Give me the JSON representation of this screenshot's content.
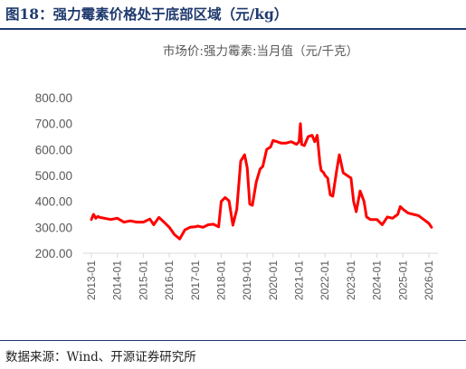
{
  "figure_title": "图18：强力霉素价格处于底部区域（元/kg）",
  "source_note": "数据来源：Wind、开源证券研究所",
  "chart_data": {
    "type": "line",
    "title": "市场价:强力霉素:当月值（元/千克）",
    "xlabel": "",
    "ylabel": "",
    "ylim": [
      200,
      800
    ],
    "y_ticks": [
      "200.00",
      "300.00",
      "400.00",
      "500.00",
      "600.00",
      "700.00",
      "800.00"
    ],
    "x_ticks": [
      "2013-01",
      "2014-01",
      "2015-01",
      "2016-01",
      "2017-01",
      "2018-01",
      "2019-01",
      "2020-01",
      "2021-01",
      "2022-01",
      "2023-01",
      "2024-01",
      "2025-01",
      "2026-01"
    ],
    "grid": false,
    "series_color": "#ff0000",
    "series": [
      {
        "x": [
          2013.0,
          2013.08,
          2013.17,
          2013.25,
          2013.33,
          2013.5,
          2013.75,
          2014.0,
          2014.25,
          2014.5,
          2014.75,
          2015.0,
          2015.25,
          2015.4,
          2015.6,
          2015.8,
          2016.0,
          2016.2,
          2016.4,
          2016.6,
          2016.8,
          2017.0,
          2017.1,
          2017.3,
          2017.5,
          2017.7,
          2017.9,
          2018.0,
          2018.15,
          2018.3,
          2018.45,
          2018.6,
          2018.75,
          2018.9,
          2019.0,
          2019.1,
          2019.2,
          2019.35,
          2019.5,
          2019.6,
          2019.75,
          2019.9,
          2020.0,
          2020.15,
          2020.3,
          2020.5,
          2020.7,
          2020.9,
          2021.0,
          2021.05,
          2021.1,
          2021.2,
          2021.35,
          2021.5,
          2021.6,
          2021.7,
          2021.8,
          2021.85,
          2021.95,
          2022.0,
          2022.1,
          2022.2,
          2022.3,
          2022.45,
          2022.55,
          2022.7,
          2022.85,
          2023.0,
          2023.1,
          2023.2,
          2023.35,
          2023.5,
          2023.6,
          2023.75,
          2024.0,
          2024.2,
          2024.4,
          2024.6,
          2024.8,
          2024.9,
          2025.0,
          2025.2,
          2025.4,
          2025.6,
          2025.8,
          2026.0,
          2026.1
        ],
        "values": [
          330,
          350,
          335,
          342,
          338,
          335,
          330,
          335,
          320,
          325,
          320,
          320,
          332,
          310,
          338,
          320,
          300,
          272,
          255,
          290,
          300,
          302,
          305,
          300,
          310,
          312,
          302,
          400,
          415,
          402,
          308,
          370,
          555,
          580,
          530,
          390,
          385,
          475,
          525,
          535,
          600,
          610,
          635,
          630,
          625,
          625,
          630,
          620,
          630,
          700,
          620,
          615,
          650,
          655,
          630,
          655,
          550,
          520,
          510,
          500,
          490,
          425,
          420,
          520,
          580,
          510,
          500,
          490,
          400,
          360,
          440,
          400,
          340,
          330,
          330,
          310,
          340,
          335,
          350,
          380,
          370,
          355,
          350,
          345,
          330,
          315,
          300
        ]
      }
    ]
  }
}
